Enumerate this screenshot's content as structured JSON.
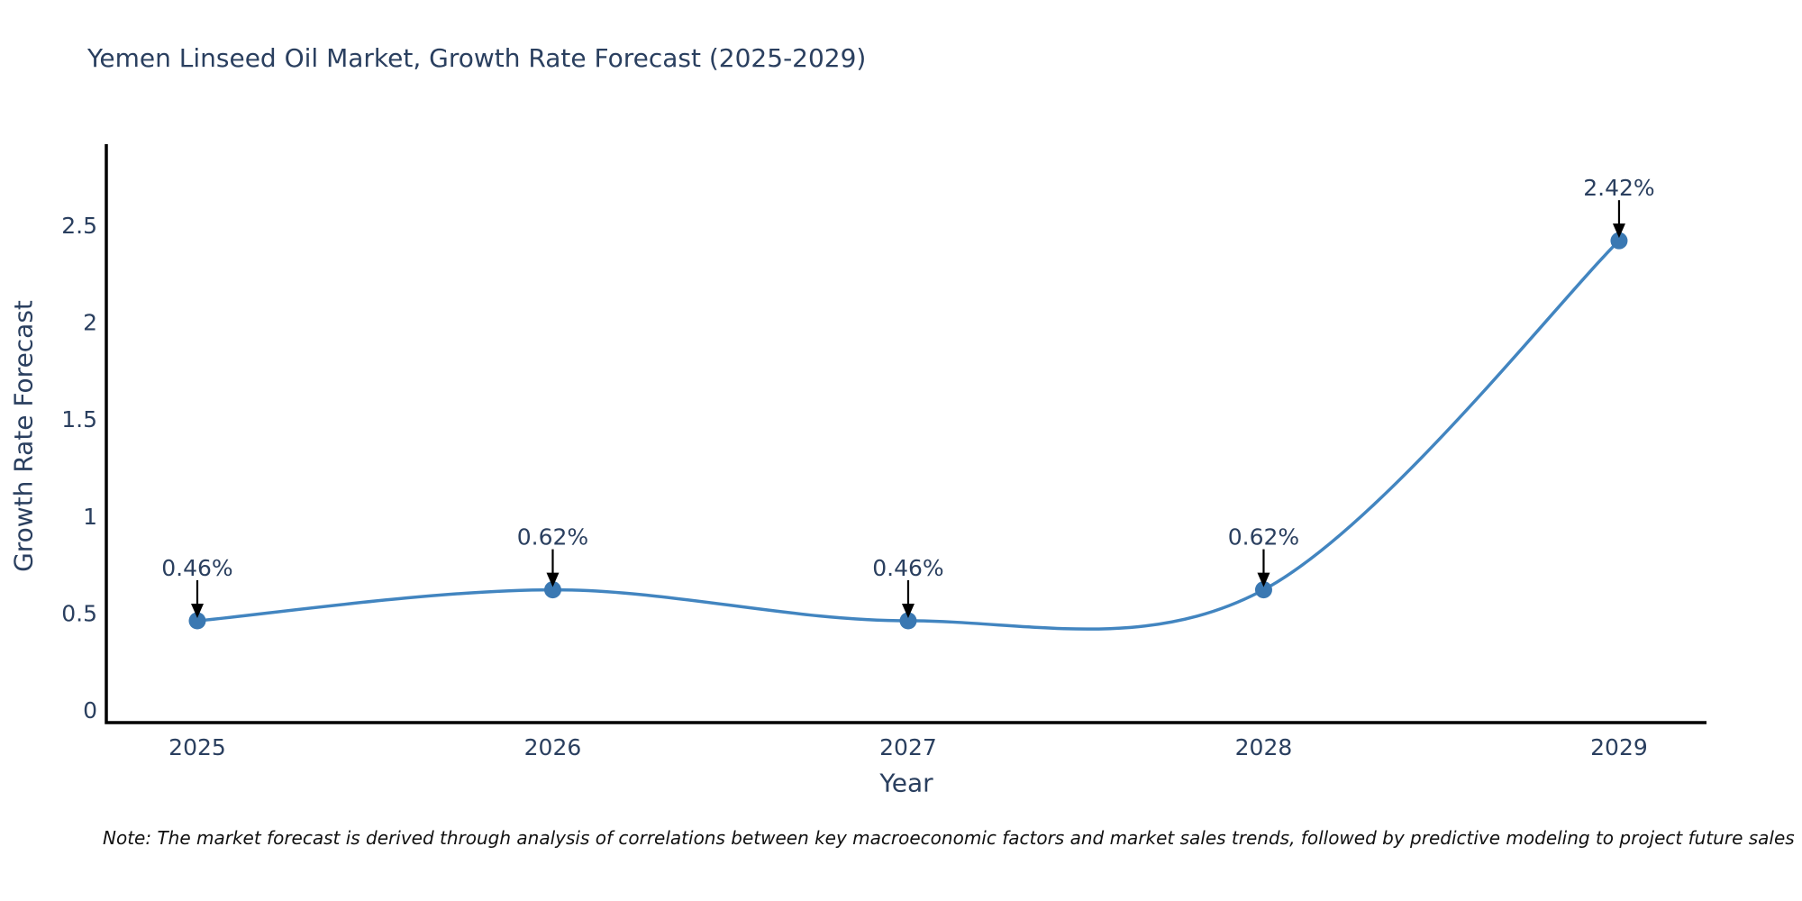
{
  "chart_data": {
    "type": "line",
    "line_shape": "spline",
    "title": "Yemen Linseed Oil Market, Growth Rate Forecast (2025-2029)",
    "xlabel": "Year",
    "ylabel": "Growth Rate Forecast",
    "x": [
      2025,
      2026,
      2027,
      2028,
      2029
    ],
    "y": [
      0.46,
      0.62,
      0.46,
      0.62,
      2.42
    ],
    "point_labels": [
      "0.46%",
      "0.62%",
      "0.46%",
      "0.62%",
      "2.42%"
    ],
    "xtick_labels": [
      "2025",
      "2026",
      "2027",
      "2028",
      "2029"
    ],
    "yticks": [
      0,
      0.5,
      1,
      1.5,
      2,
      2.5
    ],
    "ytick_labels": [
      "0",
      "0.5",
      "1",
      "1.5",
      "2",
      "2.5"
    ],
    "xlim": [
      2024.744,
      2029.246
    ],
    "ylim": [
      -0.065,
      2.918
    ],
    "grid": false,
    "legend": false,
    "note": "Note: The market forecast is derived through analysis of correlations between key macroeconomic factors and market sales trends, followed by predictive modeling to project future sales",
    "colors": {
      "line": "#4285c0",
      "marker": "#3a78b2",
      "axis": "#000000",
      "text": "#2a3f5f",
      "arrow": "#000000",
      "note_text": "#111111",
      "background": "#ffffff"
    }
  }
}
